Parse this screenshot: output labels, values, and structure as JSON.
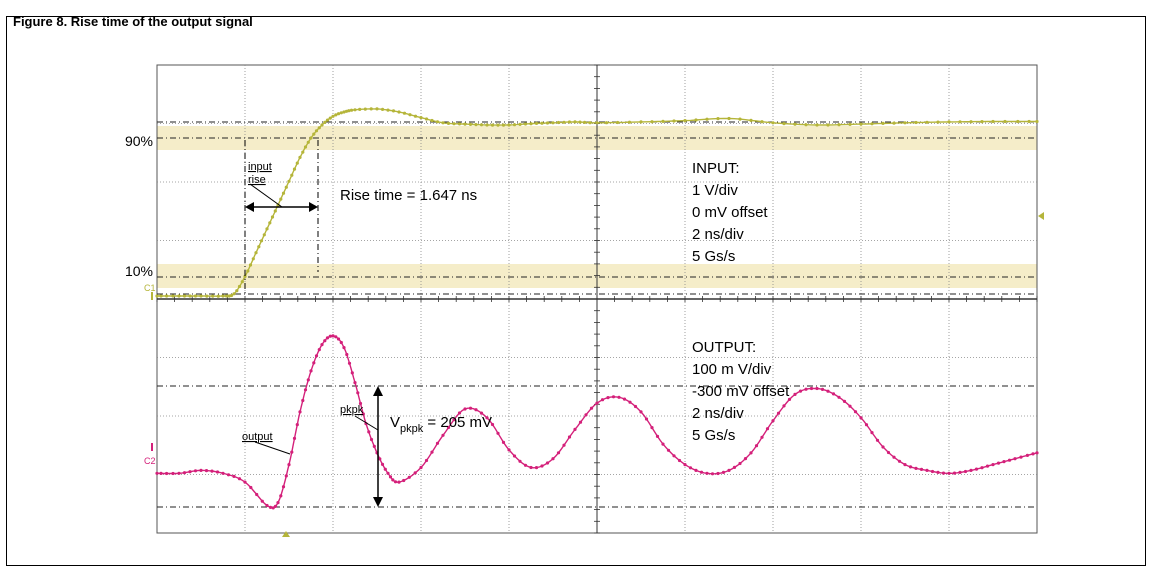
{
  "figure_label": "Figure 8. Rise time of the output signal",
  "chart_data": {
    "type": "line",
    "x_units": "ns",
    "xlim": [
      0,
      20
    ],
    "grid": true,
    "grid_divisions": {
      "x": 10,
      "y": 8
    },
    "channels": [
      {
        "name": "C1",
        "color": "#b5b53a",
        "x": [
          0,
          0.5,
          1,
          1.5,
          1.75,
          2,
          2.25,
          2.5,
          2.75,
          3,
          3.25,
          3.5,
          3.75,
          4,
          4.25,
          4.5,
          5,
          5.5,
          6,
          6.5,
          7,
          7.5,
          8,
          8.5,
          9,
          9.5,
          10,
          11,
          12,
          13,
          14,
          15,
          16,
          17,
          18,
          19,
          20
        ],
        "y": [
          0,
          0,
          0,
          0,
          0.05,
          0.45,
          1.0,
          1.55,
          2.1,
          2.65,
          3.2,
          3.65,
          3.95,
          4.15,
          4.25,
          4.3,
          4.32,
          4.25,
          4.12,
          4.0,
          3.97,
          3.95,
          3.95,
          3.98,
          4.0,
          4.02,
          4.0,
          4.02,
          4.05,
          4.1,
          4.0,
          3.95,
          3.97,
          4.0,
          4.02,
          4.03,
          4.03
        ]
      },
      {
        "name": "C2",
        "color": "#d4207a",
        "x": [
          0,
          0.5,
          1,
          1.5,
          2,
          2.5,
          2.75,
          3,
          3.25,
          3.5,
          3.75,
          4,
          4.25,
          4.5,
          4.75,
          5,
          5.25,
          5.5,
          6,
          6.5,
          7,
          7.5,
          8,
          8.5,
          9,
          9.5,
          10,
          10.5,
          11,
          11.5,
          12,
          12.5,
          13,
          13.5,
          14,
          14.5,
          15,
          15.5,
          16,
          16.5,
          17,
          17.5,
          18,
          18.5,
          19,
          19.5,
          20
        ],
        "y": [
          -0.45,
          -0.45,
          -0.4,
          -0.45,
          -0.6,
          -1.0,
          -0.95,
          -0.3,
          0.6,
          1.3,
          1.75,
          1.9,
          1.7,
          1.1,
          0.4,
          -0.1,
          -0.45,
          -0.6,
          -0.35,
          0.2,
          0.65,
          0.5,
          -0.05,
          -0.35,
          -0.2,
          0.3,
          0.75,
          0.85,
          0.6,
          0.05,
          -0.3,
          -0.45,
          -0.4,
          -0.1,
          0.45,
          0.9,
          1.0,
          0.85,
          0.5,
          0.0,
          -0.3,
          -0.4,
          -0.45,
          -0.4,
          -0.3,
          -0.2,
          -0.1
        ]
      }
    ],
    "annotations": {
      "pct90": "90%",
      "pct10": "10%",
      "c1_label": "C1",
      "c2_label": "C2",
      "input_rise_1": "input",
      "input_rise_2": "rise",
      "rise_time": "Rise time = 1.647 ns",
      "output_tag": "output",
      "pkpk_tag": "pkpk",
      "vpkpk_main": "V",
      "vpkpk_sub": "pkpk",
      "vpkpk_value": " = 205 mV"
    },
    "input_settings": [
      "INPUT:",
      "1 V/div",
      "0 mV offset",
      "2 ns/div",
      "5 Gs/s"
    ],
    "output_settings": [
      "OUTPUT:",
      "100 m V/div",
      "-300 mV offset",
      "2 ns/div",
      "5 Gs/s"
    ]
  }
}
